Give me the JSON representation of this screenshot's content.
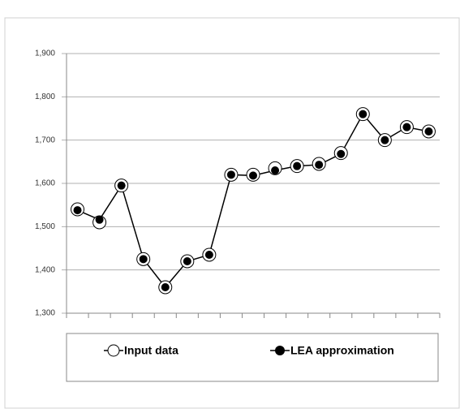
{
  "chart_data": {
    "type": "line",
    "categories": [
      null,
      null,
      null,
      null,
      null,
      null,
      null,
      null,
      null,
      null,
      null,
      null,
      null,
      null,
      null,
      null,
      null
    ],
    "series": [
      {
        "name": "Input data",
        "color": "#ffffff",
        "marker": "open",
        "values": [
          1540,
          1510,
          1595,
          1425,
          1360,
          1420,
          1435,
          1620,
          1620,
          1635,
          1640,
          1645,
          1670,
          1760,
          1700,
          1730,
          1720
        ]
      },
      {
        "name": "LEA approximation",
        "color": "#000000",
        "marker": "filled",
        "values": [
          1538,
          1516,
          1595,
          1425,
          1360,
          1420,
          1435,
          1620,
          1618,
          1630,
          1640,
          1643,
          1668,
          1760,
          1700,
          1730,
          1720
        ]
      }
    ],
    "ylim": [
      1300,
      1900
    ],
    "yticks": [
      {
        "value": 1300,
        "label": "1,300"
      },
      {
        "value": 1400,
        "label": "1,400"
      },
      {
        "value": 1500,
        "label": "1,500"
      },
      {
        "value": 1600,
        "label": "1,600"
      },
      {
        "value": 1700,
        "label": "1,700"
      },
      {
        "value": 1800,
        "label": "1,800"
      },
      {
        "value": 1900,
        "label": "1,900"
      }
    ],
    "grid": true
  }
}
